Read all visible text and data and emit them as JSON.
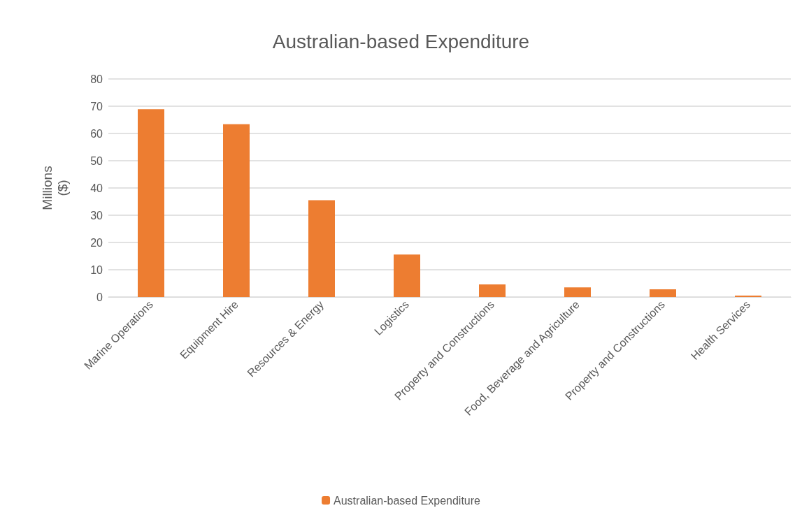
{
  "chart_data": {
    "type": "bar",
    "title": "Australian-based Expenditure",
    "ylabel": "Millions\n($)",
    "categories": [
      "Marine Operations",
      "Equipment Hire",
      "Resources & Energy",
      "Logistics",
      "Property and Constructions",
      "Food, Beverage and Agriculture",
      "Property and Constructions",
      "Health Services"
    ],
    "series": [
      {
        "name": "Australian-based Expenditure",
        "color": "#ed7d31",
        "values": [
          68.9,
          63.4,
          35.5,
          15.6,
          4.6,
          3.5,
          2.8,
          0.5
        ]
      }
    ],
    "ylim": [
      0,
      80
    ],
    "yticks": [
      0,
      10,
      20,
      30,
      40,
      50,
      60,
      70,
      80
    ],
    "grid": "y",
    "legend": "bottom"
  }
}
